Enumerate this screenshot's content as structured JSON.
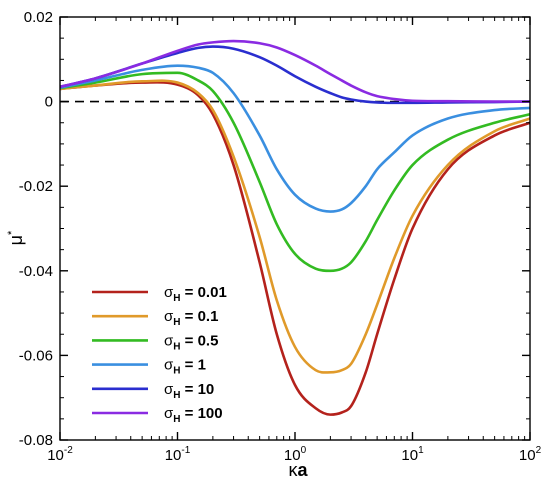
{
  "chart_data": {
    "type": "line",
    "xlabel_symbol": "κ",
    "xlabel_rest": "a",
    "ylabel_symbol": "μ",
    "ylabel_sup": "*",
    "xscale": "log",
    "xlim": [
      0.01,
      100
    ],
    "ylim": [
      -0.08,
      0.02
    ],
    "x_ticks": [
      {
        "value": 0.01,
        "base": "10",
        "exp": "-2"
      },
      {
        "value": 0.1,
        "base": "10",
        "exp": "-1"
      },
      {
        "value": 1,
        "base": "10",
        "exp": "0"
      },
      {
        "value": 10,
        "base": "10",
        "exp": "1"
      },
      {
        "value": 100,
        "base": "10",
        "exp": "2"
      }
    ],
    "y_ticks": [
      {
        "value": 0.02,
        "label": "0.02"
      },
      {
        "value": 0,
        "label": "0"
      },
      {
        "value": -0.02,
        "label": "-0.02"
      },
      {
        "value": -0.04,
        "label": "-0.04"
      },
      {
        "value": -0.06,
        "label": "-0.06"
      },
      {
        "value": -0.08,
        "label": "-0.08"
      }
    ],
    "reference_line": {
      "y": 0,
      "style": "dashed"
    },
    "legend_placement": "lower-left",
    "x": [
      0.01,
      0.02,
      0.05,
      0.1,
      0.15,
      0.2,
      0.3,
      0.5,
      0.7,
      1,
      1.5,
      2,
      2.5,
      3,
      4,
      5,
      7,
      10,
      20,
      50,
      100
    ],
    "series": [
      {
        "name_prefix": "σ",
        "name_sub": "H",
        "name_value": " = 0.01",
        "color": "#b4221c",
        "values": [
          0.003,
          0.0038,
          0.0045,
          0.004,
          0.0015,
          -0.003,
          -0.015,
          -0.038,
          -0.055,
          -0.067,
          -0.0725,
          -0.074,
          -0.0735,
          -0.072,
          -0.064,
          -0.055,
          -0.042,
          -0.03,
          -0.016,
          -0.008,
          -0.005
        ]
      },
      {
        "name_prefix": "σ",
        "name_sub": "H",
        "name_value": " = 0.1",
        "color": "#e09a2a",
        "values": [
          0.003,
          0.0038,
          0.0048,
          0.0045,
          0.002,
          -0.002,
          -0.013,
          -0.032,
          -0.047,
          -0.058,
          -0.0635,
          -0.064,
          -0.0635,
          -0.062,
          -0.055,
          -0.048,
          -0.037,
          -0.027,
          -0.015,
          -0.007,
          -0.004
        ]
      },
      {
        "name_prefix": "σ",
        "name_sub": "H",
        "name_value": " = 0.5",
        "color": "#33bb22",
        "values": [
          0.0032,
          0.0045,
          0.0065,
          0.0068,
          0.005,
          0.0025,
          -0.005,
          -0.019,
          -0.029,
          -0.036,
          -0.0395,
          -0.04,
          -0.0395,
          -0.038,
          -0.033,
          -0.028,
          -0.021,
          -0.015,
          -0.009,
          -0.005,
          -0.003
        ]
      },
      {
        "name_prefix": "σ",
        "name_sub": "H",
        "name_value": " = 1",
        "color": "#3a8fe0",
        "values": [
          0.0033,
          0.005,
          0.0075,
          0.0085,
          0.008,
          0.0068,
          0.002,
          -0.008,
          -0.016,
          -0.022,
          -0.0253,
          -0.026,
          -0.0255,
          -0.024,
          -0.02,
          -0.016,
          -0.012,
          -0.008,
          -0.004,
          -0.002,
          -0.0015
        ]
      },
      {
        "name_prefix": "σ",
        "name_sub": "H",
        "name_value": " = 10",
        "color": "#2a2ecf",
        "values": [
          0.0035,
          0.0055,
          0.009,
          0.0115,
          0.0127,
          0.013,
          0.0125,
          0.0105,
          0.0085,
          0.006,
          0.0035,
          0.002,
          0.001,
          0.0005,
          0.0,
          -0.0002,
          -0.0003,
          -0.0003,
          -0.0002,
          -0.0001,
          0.0
        ]
      },
      {
        "name_prefix": "σ",
        "name_sub": "H",
        "name_value": " = 100",
        "color": "#8a2be2",
        "values": [
          0.0035,
          0.0055,
          0.009,
          0.012,
          0.0135,
          0.014,
          0.0143,
          0.0138,
          0.0128,
          0.011,
          0.0085,
          0.0065,
          0.005,
          0.0038,
          0.0022,
          0.0013,
          0.0006,
          0.0002,
          0.0001,
          0.0,
          0.0
        ]
      }
    ]
  }
}
